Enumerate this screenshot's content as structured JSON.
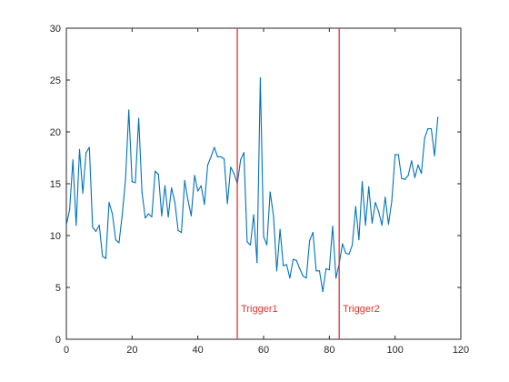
{
  "chart_data": {
    "type": "line",
    "title": "",
    "xlabel": "",
    "ylabel": "",
    "xlim": [
      0,
      120
    ],
    "ylim": [
      0,
      30
    ],
    "xticks": [
      "0",
      "20",
      "40",
      "60",
      "80",
      "100",
      "120"
    ],
    "yticks": [
      "0",
      "5",
      "10",
      "15",
      "20",
      "25",
      "30"
    ],
    "grid": false,
    "series": [
      {
        "color": "#0072bd",
        "x": [
          0,
          1,
          2,
          3,
          4,
          5,
          6,
          7,
          8,
          9,
          10,
          11,
          12,
          13,
          14,
          15,
          16,
          17,
          18,
          19,
          20,
          21,
          22,
          23,
          24,
          25,
          26,
          27,
          28,
          29,
          30,
          31,
          32,
          33,
          34,
          35,
          36,
          37,
          38,
          39,
          40,
          41,
          42,
          43,
          44,
          45,
          46,
          47,
          48,
          49,
          50,
          51,
          52,
          53,
          54,
          55,
          56,
          57,
          58,
          59,
          60,
          61,
          62,
          63,
          64,
          65,
          66,
          67,
          68,
          69,
          70,
          71,
          72,
          73,
          74,
          75,
          76,
          77,
          78,
          79,
          80,
          81,
          82,
          83,
          84,
          85,
          86,
          87,
          88,
          89,
          90,
          91,
          92,
          93,
          94,
          95,
          96,
          97,
          98,
          99,
          100,
          101,
          102,
          103,
          104,
          105,
          106,
          107,
          108,
          109,
          110,
          111,
          112,
          113
        ],
        "y": [
          11.0,
          12.5,
          17.3,
          11.0,
          18.3,
          14.1,
          18.0,
          18.5,
          10.8,
          10.4,
          11.0,
          8.0,
          7.8,
          13.2,
          12.1,
          9.6,
          9.3,
          12.0,
          15.4,
          22.1,
          15.2,
          15.1,
          21.3,
          14.2,
          11.7,
          12.1,
          11.8,
          16.2,
          15.9,
          11.9,
          14.8,
          11.8,
          14.6,
          13.2,
          10.5,
          10.3,
          15.3,
          13.4,
          11.9,
          15.8,
          14.3,
          14.8,
          13.0,
          16.8,
          17.6,
          18.5,
          17.6,
          17.6,
          17.4,
          13.1,
          16.6,
          16.0,
          15.0,
          17.3,
          18.0,
          9.4,
          9.1,
          12.0,
          7.4,
          25.2,
          9.9,
          9.1,
          14.2,
          11.9,
          6.6,
          10.6,
          7.1,
          7.2,
          5.9,
          7.7,
          7.6,
          6.8,
          6.1,
          5.9,
          9.5,
          10.3,
          6.6,
          6.6,
          4.6,
          6.8,
          6.7,
          10.9,
          5.9,
          7.3,
          9.2,
          8.3,
          8.2,
          9.1,
          12.8,
          9.6,
          15.2,
          11.0,
          14.7,
          11.2,
          13.2,
          12.3,
          11.0,
          13.7,
          11.1,
          13.3,
          17.8,
          17.8,
          15.5,
          15.4,
          15.8,
          17.2,
          15.6,
          16.8,
          16.0,
          19.4,
          20.3,
          20.3,
          17.7,
          21.4
        ]
      }
    ],
    "annotations": [
      {
        "x": 52,
        "label": "Trigger1",
        "color": "#e8312a"
      },
      {
        "x": 83,
        "label": "Trigger2",
        "color": "#e8312a"
      }
    ]
  }
}
